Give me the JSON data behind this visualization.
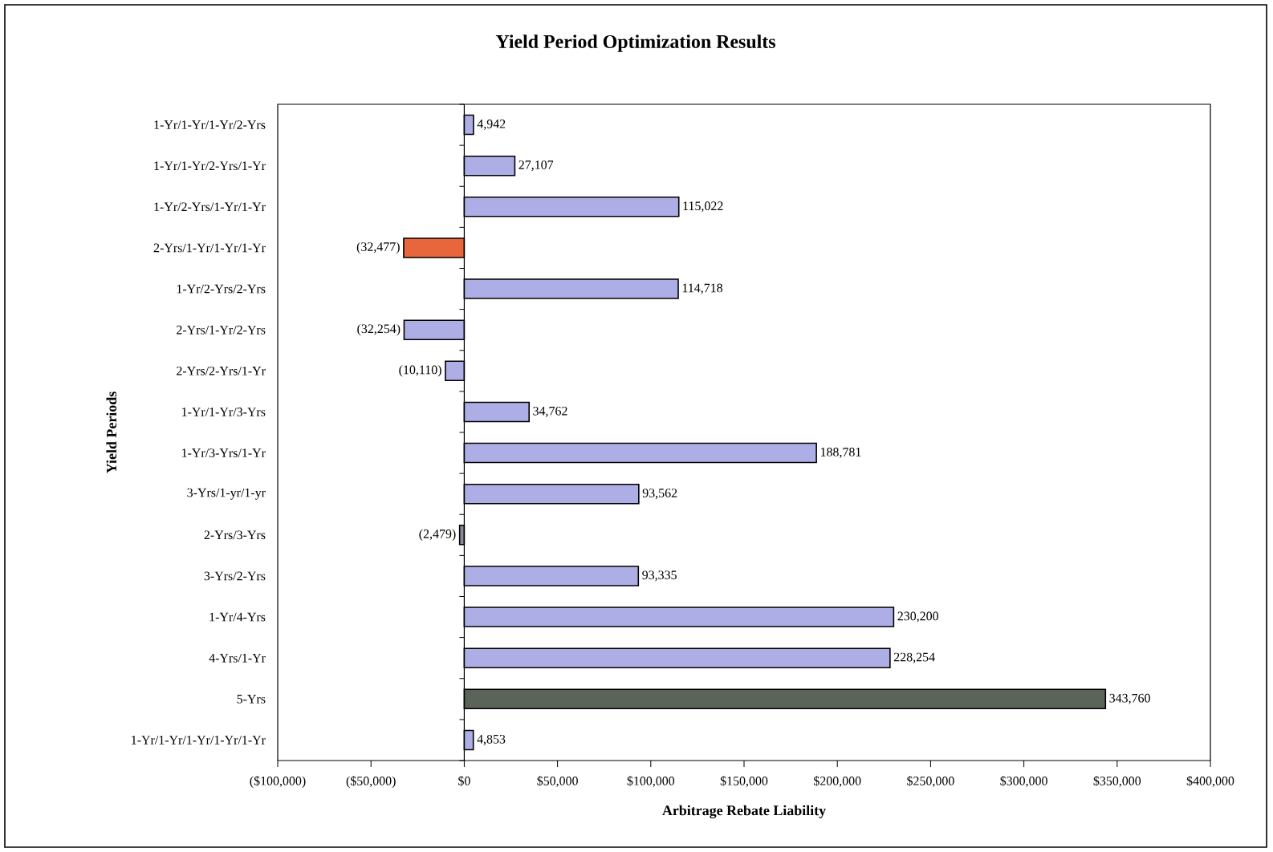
{
  "chart_data": {
    "type": "bar",
    "orientation": "horizontal",
    "title": "Yield Period Optimization Results",
    "xlabel": "Arbitrage Rebate Liability",
    "ylabel": "Yield Periods",
    "categories": [
      "1-Yr/1-Yr/1-Yr/2-Yrs",
      "1-Yr/1-Yr/2-Yrs/1-Yr",
      "1-Yr/2-Yrs/1-Yr/1-Yr",
      "2-Yrs/1-Yr/1-Yr/1-Yr",
      "1-Yr/2-Yrs/2-Yrs",
      "2-Yrs/1-Yr/2-Yrs",
      "2-Yrs/2-Yrs/1-Yr",
      "1-Yr/1-Yr/3-Yrs",
      "1-Yr/3-Yrs/1-Yr",
      "3-Yrs/1-yr/1-yr",
      "2-Yrs/3-Yrs",
      "3-Yrs/2-Yrs",
      "1-Yr/4-Yrs",
      "4-Yrs/1-Yr",
      "5-Yrs",
      "1-Yr/1-Yr/1-Yr/1-Yr/1-Yr"
    ],
    "values": [
      4942,
      27107,
      115022,
      -32477,
      114718,
      -32254,
      -10110,
      34762,
      188781,
      93562,
      -2479,
      93335,
      230200,
      228254,
      343760,
      4853
    ],
    "value_labels": [
      "4,942",
      "27,107",
      "115,022",
      "(32,477)",
      "114,718",
      "(32,254)",
      "(10,110)",
      "34,762",
      "188,781",
      "93,562",
      "(2,479)",
      "93,335",
      "230,200",
      "228,254",
      "343,760",
      "4,853"
    ],
    "colors": [
      "#aeaee6",
      "#aeaee6",
      "#aeaee6",
      "#e8663c",
      "#aeaee6",
      "#aeaee6",
      "#aeaee6",
      "#aeaee6",
      "#aeaee6",
      "#aeaee6",
      "#8a8a96",
      "#aeaee6",
      "#aeaee6",
      "#aeaee6",
      "#5c645a",
      "#aeaee6"
    ],
    "xlim": [
      -100000,
      400000
    ],
    "xticks": [
      {
        "value": -100000,
        "label": "($100,000)"
      },
      {
        "value": -50000,
        "label": "($50,000)"
      },
      {
        "value": 0,
        "label": "$0"
      },
      {
        "value": 50000,
        "label": "$50,000"
      },
      {
        "value": 100000,
        "label": "$100,000"
      },
      {
        "value": 150000,
        "label": "$150,000"
      },
      {
        "value": 200000,
        "label": "$200,000"
      },
      {
        "value": 250000,
        "label": "$250,000"
      },
      {
        "value": 300000,
        "label": "$300,000"
      },
      {
        "value": 350000,
        "label": "$350,000"
      },
      {
        "value": 400000,
        "label": "$400,000"
      }
    ]
  }
}
